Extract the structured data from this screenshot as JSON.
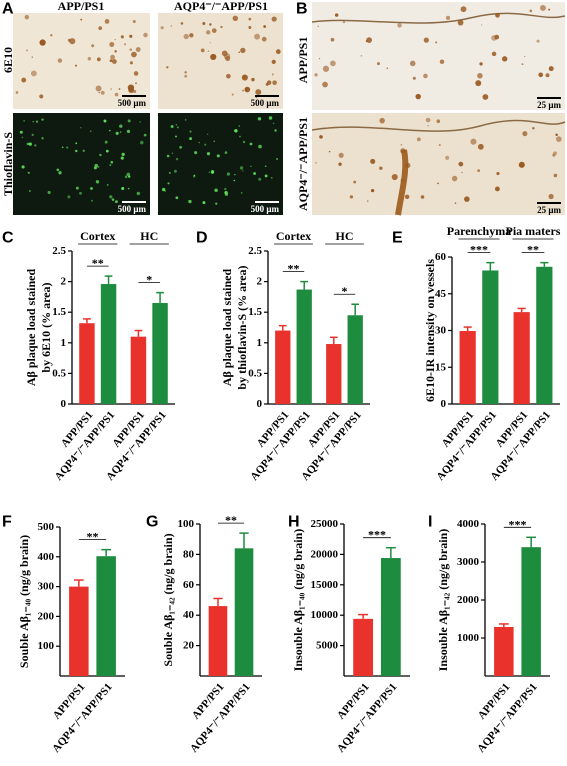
{
  "images": {
    "A": {
      "panel": "A",
      "columns": [
        "APP/PS1",
        "AQP4⁻/⁻APP/PS1"
      ],
      "rows": [
        "6E10",
        "Thioflavin-S"
      ],
      "scale": "500 μm"
    },
    "B": {
      "panel": "B",
      "rows": [
        "APP/PS1",
        "AQP4⁻/⁻APP/PS1"
      ],
      "scale": "25 μm"
    }
  },
  "chart_data": [
    {
      "type": "bar",
      "panel": "C",
      "ylabel": [
        "Aβ plaque load stained",
        "by 6E10 (% area)"
      ],
      "categories": [
        "Cortex",
        "HC"
      ],
      "series": [
        {
          "name": "APP/PS1",
          "color": "#e8322b",
          "values": [
            1.32,
            1.1
          ],
          "errors": [
            0.07,
            0.1
          ]
        },
        {
          "name": "AQP4⁻/⁻APP/PS1",
          "color": "#1e8c3e",
          "values": [
            1.96,
            1.65
          ],
          "errors": [
            0.13,
            0.17
          ]
        }
      ],
      "significance": [
        "**",
        "*"
      ],
      "ylim": [
        0,
        2.5
      ],
      "yticks": [
        0,
        0.5,
        1,
        1.5,
        2,
        2.5
      ]
    },
    {
      "type": "bar",
      "panel": "D",
      "ylabel": [
        "Aβ plaque load stained",
        "by thioflavin-S (% area)"
      ],
      "categories": [
        "Cortex",
        "HC"
      ],
      "series": [
        {
          "name": "APP/PS1",
          "color": "#e8322b",
          "values": [
            1.2,
            0.98
          ],
          "errors": [
            0.08,
            0.11
          ]
        },
        {
          "name": "AQP4⁻/⁻APP/PS1",
          "color": "#1e8c3e",
          "values": [
            1.87,
            1.45
          ],
          "errors": [
            0.13,
            0.18
          ]
        }
      ],
      "significance": [
        "**",
        "*"
      ],
      "ylim": [
        0,
        2.5
      ],
      "yticks": [
        0,
        0.5,
        1,
        1.5,
        2,
        2.5
      ]
    },
    {
      "type": "bar",
      "panel": "E",
      "ylabel": [
        "6E10-IR intensity on vessels"
      ],
      "categories": [
        "Parenchyma",
        "Pia maters"
      ],
      "series": [
        {
          "name": "APP/PS1",
          "color": "#e8322b",
          "values": [
            29.8,
            37.5
          ],
          "errors": [
            1.6,
            1.5
          ]
        },
        {
          "name": "AQP4⁻/⁻APP/PS1",
          "color": "#1e8c3e",
          "values": [
            54.5,
            56
          ],
          "errors": [
            3.2,
            1.7
          ]
        }
      ],
      "significance": [
        "***",
        "**"
      ],
      "ylim": [
        0,
        60
      ],
      "yticks": [
        0,
        15,
        30,
        45,
        60
      ]
    },
    {
      "type": "bar",
      "panel": "F",
      "ylabel": [
        "Souble Aβ₁₋₄₀ (ng/g brain)"
      ],
      "series": [
        {
          "name": "APP/PS1",
          "color": "#e8322b",
          "values": [
            300
          ],
          "errors": [
            22
          ]
        },
        {
          "name": "AQP4⁻/⁻APP/PS1",
          "color": "#1e8c3e",
          "values": [
            402
          ],
          "errors": [
            22
          ]
        }
      ],
      "significance": [
        "**"
      ],
      "ylim": [
        0,
        500
      ],
      "yticks": [
        100,
        200,
        300,
        400,
        500
      ]
    },
    {
      "type": "bar",
      "panel": "G",
      "ylabel": [
        "Souble Aβ₁₋₄₂ (ng/g brain)"
      ],
      "series": [
        {
          "name": "APP/PS1",
          "color": "#e8322b",
          "values": [
            46
          ],
          "errors": [
            5
          ]
        },
        {
          "name": "AQP4⁻/⁻APP/PS1",
          "color": "#1e8c3e",
          "values": [
            84
          ],
          "errors": [
            10
          ]
        }
      ],
      "significance": [
        "**"
      ],
      "ylim": [
        0,
        100
      ],
      "yticks": [
        20,
        40,
        60,
        80,
        100
      ]
    },
    {
      "type": "bar",
      "panel": "H",
      "ylabel": [
        "Insouble Aβ₁₋₄₀ (ng/g brain)"
      ],
      "series": [
        {
          "name": "APP/PS1",
          "color": "#e8322b",
          "values": [
            9400
          ],
          "errors": [
            700
          ]
        },
        {
          "name": "AQP4⁻/⁻APP/PS1",
          "color": "#1e8c3e",
          "values": [
            19400
          ],
          "errors": [
            1700
          ]
        }
      ],
      "significance": [
        "***"
      ],
      "ylim": [
        0,
        25000
      ],
      "yticks": [
        5000,
        10000,
        15000,
        20000,
        25000
      ]
    },
    {
      "type": "bar",
      "panel": "I",
      "ylabel": [
        "Insouble Aβ₁₋₄₂ (ng/g brain)"
      ],
      "series": [
        {
          "name": "APP/PS1",
          "color": "#e8322b",
          "values": [
            1290
          ],
          "errors": [
            80
          ]
        },
        {
          "name": "AQP4⁻/⁻APP/PS1",
          "color": "#1e8c3e",
          "values": [
            3390
          ],
          "errors": [
            260
          ]
        }
      ],
      "significance": [
        "***"
      ],
      "ylim": [
        0,
        4000
      ],
      "yticks": [
        1000,
        2000,
        3000,
        4000
      ]
    }
  ]
}
